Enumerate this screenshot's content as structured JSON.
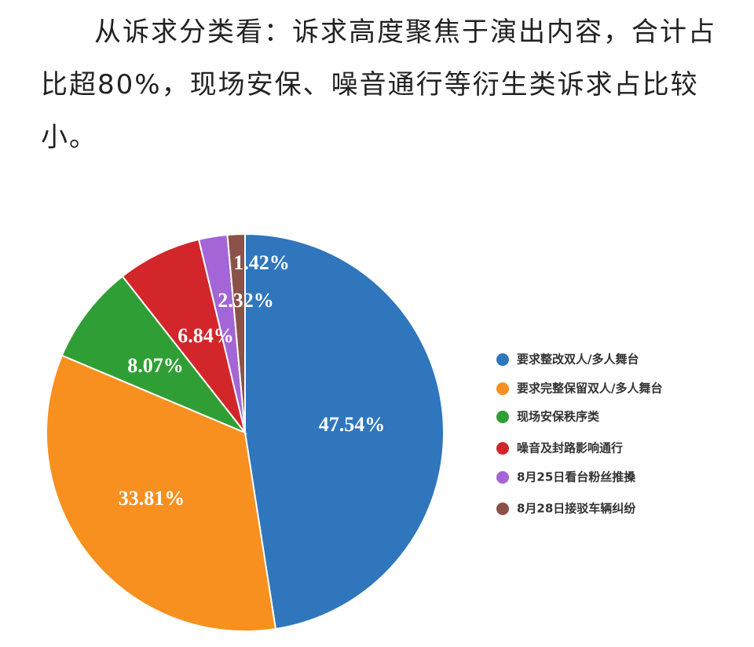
{
  "paragraph": "从诉求分类看：诉求高度聚焦于演出内容，合计占比超80%，现场安保、噪音通行等衍生类诉求占比较小。",
  "chart_data": {
    "type": "pie",
    "categories": [
      "要求整改双人/多人舞台",
      "要求完整保留双人/多人舞台",
      "现场安保秩序类",
      "噪音及封路影响通行",
      "8月25日看台粉丝推搡",
      "8月28日接驳车辆纠纷"
    ],
    "values": [
      47.54,
      33.81,
      8.07,
      6.84,
      2.32,
      1.42
    ],
    "value_labels": [
      "47.54%",
      "33.81%",
      "8.07%",
      "6.84%",
      "2.32%",
      "1.42%"
    ],
    "colors": [
      "#2f76bd",
      "#f7901e",
      "#2f9f35",
      "#d3262a",
      "#a465d6",
      "#8b5249"
    ],
    "legend": "right"
  }
}
